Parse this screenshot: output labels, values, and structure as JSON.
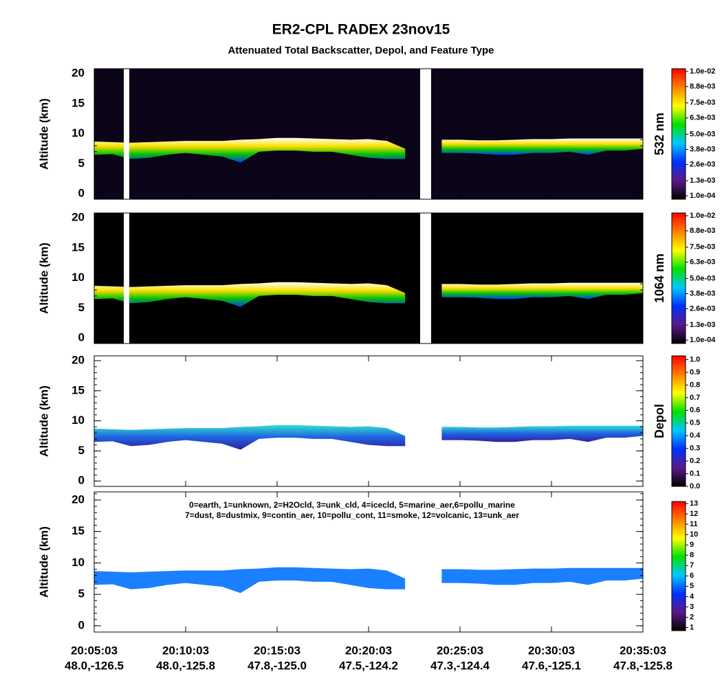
{
  "title": "ER2-CPL RADEX 23nov15",
  "subtitle": "Attenuated Total Backscatter, Depol, and Feature Type",
  "xlim": [
    "20:05:03",
    "20:35:03"
  ],
  "xticks": [
    "20:05:03",
    "20:10:03",
    "20:15:03",
    "20:20:03",
    "20:25:03",
    "20:30:03",
    "20:35:03"
  ],
  "xtick_positions": [
    "48.0,-126.5",
    "48.0,-125.8",
    "47.8,-125.0",
    "47.5,-124.2",
    "47.3,-124.4",
    "47.6,-125.1",
    "47.8,-125.8"
  ],
  "x": [
    "20:05:03",
    "20:06:03",
    "20:07:03",
    "20:08:03",
    "20:09:03",
    "20:10:03",
    "20:11:03",
    "20:12:03",
    "20:13:03",
    "20:14:03",
    "20:15:03",
    "20:16:03",
    "20:17:03",
    "20:18:03",
    "20:19:03",
    "20:20:03",
    "20:21:03",
    "20:22:03",
    "20:23:03",
    "20:24:03",
    "20:25:03",
    "20:26:03",
    "20:27:03",
    "20:28:03",
    "20:29:03",
    "20:30:03",
    "20:31:03",
    "20:32:03",
    "20:33:03",
    "20:34:03",
    "20:35:03"
  ],
  "layer_top": [
    8.7,
    8.6,
    8.5,
    8.6,
    8.7,
    8.8,
    8.8,
    8.8,
    9.0,
    9.1,
    9.3,
    9.3,
    9.2,
    9.1,
    9.0,
    9.1,
    8.8,
    7.5,
    null,
    9.0,
    9.0,
    8.9,
    8.9,
    9.0,
    9.1,
    9.1,
    9.2,
    9.2,
    9.2,
    9.2,
    9.2
  ],
  "layer_base": [
    6.5,
    6.6,
    5.8,
    6.0,
    6.5,
    6.8,
    6.5,
    6.2,
    5.2,
    7.0,
    7.2,
    7.2,
    7.0,
    7.0,
    6.5,
    6.0,
    5.8,
    5.8,
    null,
    6.8,
    6.8,
    6.7,
    6.5,
    6.5,
    6.8,
    6.8,
    7.0,
    6.5,
    7.2,
    7.2,
    7.5
  ],
  "chart_data": [
    {
      "type": "curtain",
      "ylabel": "Altitude (km)",
      "ylim": [
        -0.9,
        20.8
      ],
      "yticks": [
        0,
        5,
        10,
        15,
        20
      ],
      "background": "#0c0418",
      "layer_colors": [
        "#ffffff",
        "#ffe000",
        "#00c000",
        "#0040ff"
      ],
      "colorbar_label": "532 nm",
      "clim": [
        -0.00017,
        0.01022
      ],
      "colorbar_colors": [
        "#000000",
        "#5a1a8a",
        "#0030ff",
        "#00c8ff",
        "#00e000",
        "#ffff00",
        "#ff8000",
        "#ff0000"
      ],
      "cticks": [
        {
          "value": 0.0001,
          "label": "1.0e-04"
        },
        {
          "value": 0.0013,
          "label": "1.3e-03"
        },
        {
          "value": 0.0026,
          "label": "2.6e-03"
        },
        {
          "value": 0.0038,
          "label": "3.8e-03"
        },
        {
          "value": 0.005,
          "label": "5.0e-03"
        },
        {
          "value": 0.0063,
          "label": "6.3e-03"
        },
        {
          "value": 0.0075,
          "label": "7.5e-03"
        },
        {
          "value": 0.0088,
          "label": "8.8e-03"
        },
        {
          "value": 0.01,
          "label": "1.0e-02"
        }
      ]
    },
    {
      "type": "curtain",
      "ylabel": "Altitude (km)",
      "ylim": [
        -0.9,
        20.8
      ],
      "yticks": [
        0,
        5,
        10,
        15,
        20
      ],
      "background": "#000000",
      "layer_colors": [
        "#ffffff",
        "#ffe000",
        "#00c000",
        "#0040ff"
      ],
      "colorbar_label": "1064 nm",
      "clim": [
        -0.00017,
        0.01022
      ],
      "colorbar_colors": [
        "#000000",
        "#5a1a8a",
        "#0030ff",
        "#00c8ff",
        "#00e000",
        "#ffff00",
        "#ff8000",
        "#ff0000"
      ],
      "cticks": [
        {
          "value": 0.0001,
          "label": "1.0e-04"
        },
        {
          "value": 0.0013,
          "label": "1.3e-03"
        },
        {
          "value": 0.0026,
          "label": "2.6e-03"
        },
        {
          "value": 0.0038,
          "label": "3.8e-03"
        },
        {
          "value": 0.005,
          "label": "5.0e-03"
        },
        {
          "value": 0.0063,
          "label": "6.3e-03"
        },
        {
          "value": 0.0075,
          "label": "7.5e-03"
        },
        {
          "value": 0.0088,
          "label": "8.8e-03"
        },
        {
          "value": 0.01,
          "label": "1.0e-02"
        }
      ]
    },
    {
      "type": "curtain",
      "ylabel": "Altitude (km)",
      "ylim": [
        -0.9,
        20.8
      ],
      "yticks": [
        0,
        5,
        10,
        15,
        20
      ],
      "background": "#ffffff",
      "layer_colors": [
        "#30e0d0",
        "#2060e0",
        "#3020a0"
      ],
      "colorbar_label": "Depol",
      "clim": [
        0,
        1.03
      ],
      "colorbar_colors": [
        "#000000",
        "#5a1a8a",
        "#0030ff",
        "#00c8ff",
        "#00e000",
        "#ffff00",
        "#ff8000",
        "#ff0000"
      ],
      "cticks": [
        {
          "value": 0,
          "label": "0.0"
        },
        0.1,
        0.2,
        0.3,
        0.4,
        0.5,
        0.6,
        0.7,
        0.8,
        0.9,
        {
          "value": 1,
          "label": "1.0"
        }
      ]
    },
    {
      "type": "curtain",
      "ylabel": "Altitude (km)",
      "ylim": [
        -1.0,
        21.3
      ],
      "yticks": [
        0,
        5,
        10,
        15,
        20
      ],
      "background": "#ffffff",
      "layer_colors": [
        "#1a80ff"
      ],
      "annotation": [
        "0=earth, 1=unknown, 2=H2Ocld, 3=unk_cld, 4=icecld, 5=marine_aer,6=pollu_marine",
        "7=dust, 8=dustmix, 9=contin_aer, 10=pollu_cont, 11=smoke, 12=volcanic, 13=unk_aer"
      ],
      "clim": [
        0.7,
        13.2
      ],
      "colorbar_colors": [
        "#000000",
        "#5a1a8a",
        "#0030ff",
        "#00c8ff",
        "#00e000",
        "#ffff00",
        "#ff8000",
        "#ff0000"
      ],
      "cticks": [
        1,
        2,
        3,
        4,
        5,
        6,
        7,
        8,
        9,
        10,
        11,
        12,
        13
      ]
    }
  ]
}
